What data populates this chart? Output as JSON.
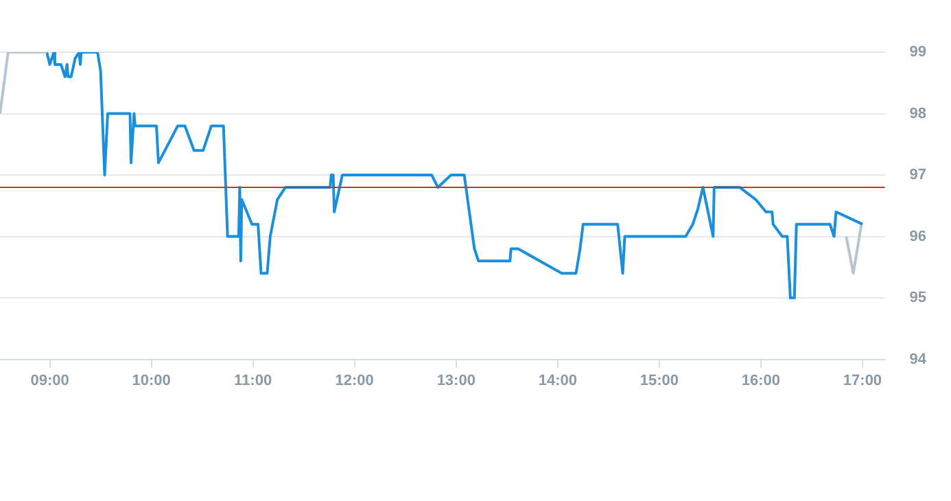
{
  "chart_data": {
    "type": "line",
    "xlim": [
      8.51,
      17.22
    ],
    "xticks": [
      {
        "value": 9,
        "label": "09:00"
      },
      {
        "value": 10,
        "label": "10:00"
      },
      {
        "value": 11,
        "label": "11:00"
      },
      {
        "value": 12,
        "label": "12:00"
      },
      {
        "value": 13,
        "label": "13:00"
      },
      {
        "value": 14,
        "label": "14:00"
      },
      {
        "value": 15,
        "label": "15:00"
      },
      {
        "value": 16,
        "label": "16:00"
      },
      {
        "value": 17,
        "label": "17:00"
      }
    ],
    "ylim": [
      94,
      99
    ],
    "yticks": [
      94,
      95,
      96,
      97,
      98,
      99
    ],
    "grid": "y",
    "legend": false,
    "marker": "none",
    "line_style": "solid",
    "ref_lines": [
      {
        "axis": "y",
        "value": 96.8,
        "color": "#c0392b"
      }
    ],
    "series": [
      {
        "color": "#b9c5cd",
        "x": [
          8.51,
          8.59,
          8.97
        ],
        "values": [
          98,
          99,
          99
        ]
      },
      {
        "color": "#1a8fdc",
        "x": [
          8.97,
          9.0,
          9.04,
          9.05,
          9.11,
          9.15,
          9.17,
          9.18,
          9.21,
          9.25,
          9.29,
          9.3,
          9.31,
          9.47,
          9.5,
          9.54,
          9.57,
          9.79,
          9.8,
          9.83,
          9.84,
          10.05,
          10.07,
          10.26,
          10.33,
          10.42,
          10.51,
          10.59,
          10.71,
          10.75,
          10.86,
          10.87,
          10.88,
          10.89,
          10.99,
          11.05,
          11.08,
          11.14,
          11.17,
          11.24,
          11.32,
          11.76,
          11.77,
          11.79,
          11.8,
          11.88,
          12.76,
          12.82,
          12.95,
          13.08,
          13.18,
          13.22,
          13.53,
          13.54,
          13.61,
          14.04,
          14.18,
          14.22,
          14.25,
          14.59,
          14.64,
          14.66,
          15.26,
          15.33,
          15.38,
          15.43,
          15.53,
          15.54,
          15.79,
          15.95,
          16.05,
          16.11,
          16.12,
          16.21,
          16.26,
          16.29,
          16.33,
          16.35,
          16.68,
          16.72,
          16.74,
          17.0
        ],
        "values": [
          99,
          98.8,
          99,
          98.8,
          98.8,
          98.6,
          98.8,
          98.6,
          98.6,
          98.9,
          99,
          98.8,
          99,
          99,
          98.7,
          97.0,
          98.0,
          98.0,
          97.2,
          98.0,
          97.8,
          97.8,
          97.2,
          97.8,
          97.8,
          97.4,
          97.4,
          97.8,
          97.8,
          96.0,
          96.0,
          96.8,
          95.6,
          96.6,
          96.2,
          96.2,
          95.4,
          95.4,
          96.0,
          96.6,
          96.8,
          96.8,
          97.0,
          97.0,
          96.4,
          97.0,
          97.0,
          96.8,
          97.0,
          97.0,
          95.8,
          95.6,
          95.6,
          95.8,
          95.8,
          95.4,
          95.4,
          95.8,
          96.2,
          96.2,
          95.4,
          96.0,
          96.0,
          96.2,
          96.45,
          96.8,
          96.0,
          96.8,
          96.8,
          96.6,
          96.4,
          96.4,
          96.2,
          96.0,
          96.0,
          95.0,
          95.0,
          96.2,
          96.2,
          96.0,
          96.4,
          96.2
        ]
      },
      {
        "color": "#b9c5cd",
        "x": [
          16.84,
          16.91,
          16.99
        ],
        "values": [
          96.0,
          95.4,
          96.2
        ]
      }
    ]
  }
}
